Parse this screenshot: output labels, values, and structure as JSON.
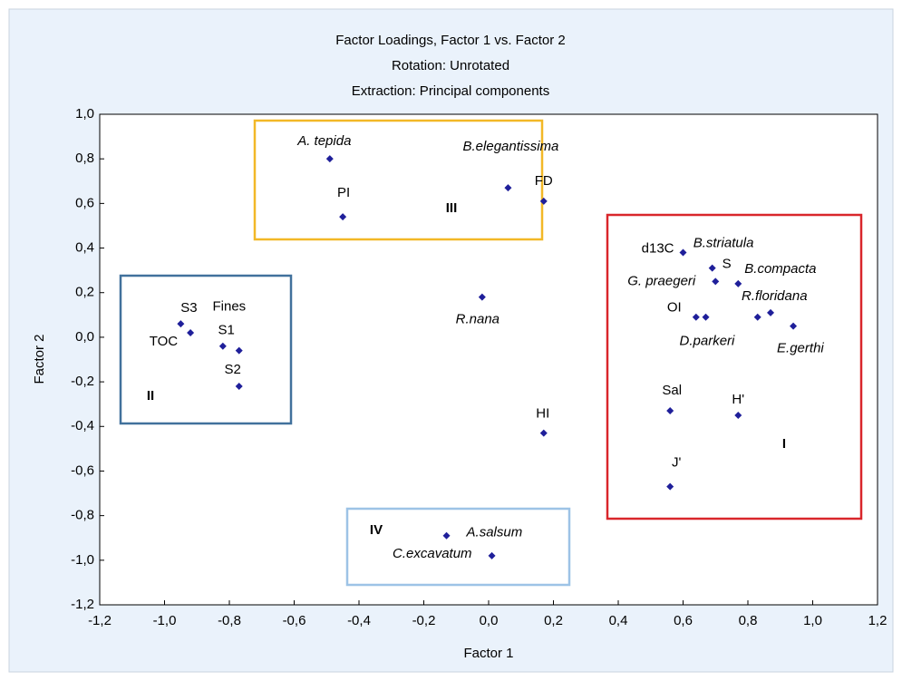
{
  "chart_data": {
    "type": "scatter",
    "title": "Factor Loadings, Factor 1 vs. Factor 2",
    "subtitle": [
      "Rotation: Unrotated",
      "Extraction: Principal components"
    ],
    "x_label": "Factor 1",
    "y_label": "Factor 2",
    "color": "#1f1f9a",
    "point_labels": [
      "A. tepida",
      "PI",
      "B.elegantissima",
      "FD",
      "R.nana",
      "HI",
      "A.salsum",
      "C.excavatum",
      "S3",
      "TOC",
      "Fines",
      "S1",
      "S2",
      "d13C",
      "S",
      "G. praegeri",
      "B.compacta",
      "R.floridana",
      "E.gerthi",
      "OI",
      "D.parkeri",
      "B.striatula",
      "Sal",
      "H'",
      "J'"
    ],
    "x": [
      -0.49,
      -0.45,
      0.06,
      0.17,
      -0.02,
      0.17,
      -0.13,
      0.01,
      -0.95,
      -0.92,
      -0.82,
      -0.77,
      -0.77,
      0.6,
      0.69,
      0.7,
      0.77,
      0.87,
      0.94,
      0.64,
      0.67,
      0.83,
      0.56,
      0.77,
      0.56
    ],
    "values": [
      0.8,
      0.54,
      0.67,
      0.61,
      0.18,
      -0.43,
      -0.89,
      -0.98,
      0.06,
      0.02,
      -0.04,
      -0.06,
      -0.22,
      0.38,
      0.31,
      0.25,
      0.24,
      0.11,
      0.05,
      0.09,
      0.09,
      0.09,
      -0.33,
      -0.35,
      -0.67
    ],
    "xlim": [
      -1.2,
      1.2
    ],
    "ylim": [
      -1.2,
      1.0
    ],
    "xticks": [
      {
        "value": -1.2,
        "label": "-1,2"
      },
      {
        "value": -1.0,
        "label": "-1,0"
      },
      {
        "value": -0.8,
        "label": "-0,8"
      },
      {
        "value": -0.6,
        "label": "-0,6"
      },
      {
        "value": -0.4,
        "label": "-0,4"
      },
      {
        "value": -0.2,
        "label": "-0,2"
      },
      {
        "value": 0,
        "label": "0,0"
      },
      {
        "value": 0.2,
        "label": "0,2"
      },
      {
        "value": 0.4,
        "label": "0,4"
      },
      {
        "value": 0.6,
        "label": "0,6"
      },
      {
        "value": 0.8,
        "label": "0,8"
      },
      {
        "value": 1.0,
        "label": "1,0"
      },
      {
        "value": 1.2,
        "label": "1,2"
      }
    ],
    "yticks": [
      {
        "value": -1.2,
        "label": "-1,2"
      },
      {
        "value": -1.0,
        "label": "-1,0"
      },
      {
        "value": -0.8,
        "label": "-0,8"
      },
      {
        "value": -0.6,
        "label": "-0,6"
      },
      {
        "value": -0.4,
        "label": "-0,4"
      },
      {
        "value": -0.2,
        "label": "-0,2"
      },
      {
        "value": 0,
        "label": "0,0"
      },
      {
        "value": 0.2,
        "label": "0,2"
      },
      {
        "value": 0.4,
        "label": "0,4"
      },
      {
        "value": 0.6,
        "label": "0,6"
      },
      {
        "value": 0.8,
        "label": "0,8"
      },
      {
        "value": 1.0,
        "label": "1,0"
      }
    ],
    "regions": [
      {
        "label": "I",
        "color": "#d9262b"
      },
      {
        "label": "II",
        "color": "#41719c"
      },
      {
        "label": "III",
        "color": "#f2b827"
      },
      {
        "label": "IV",
        "color": "#9dc3e6"
      }
    ]
  }
}
